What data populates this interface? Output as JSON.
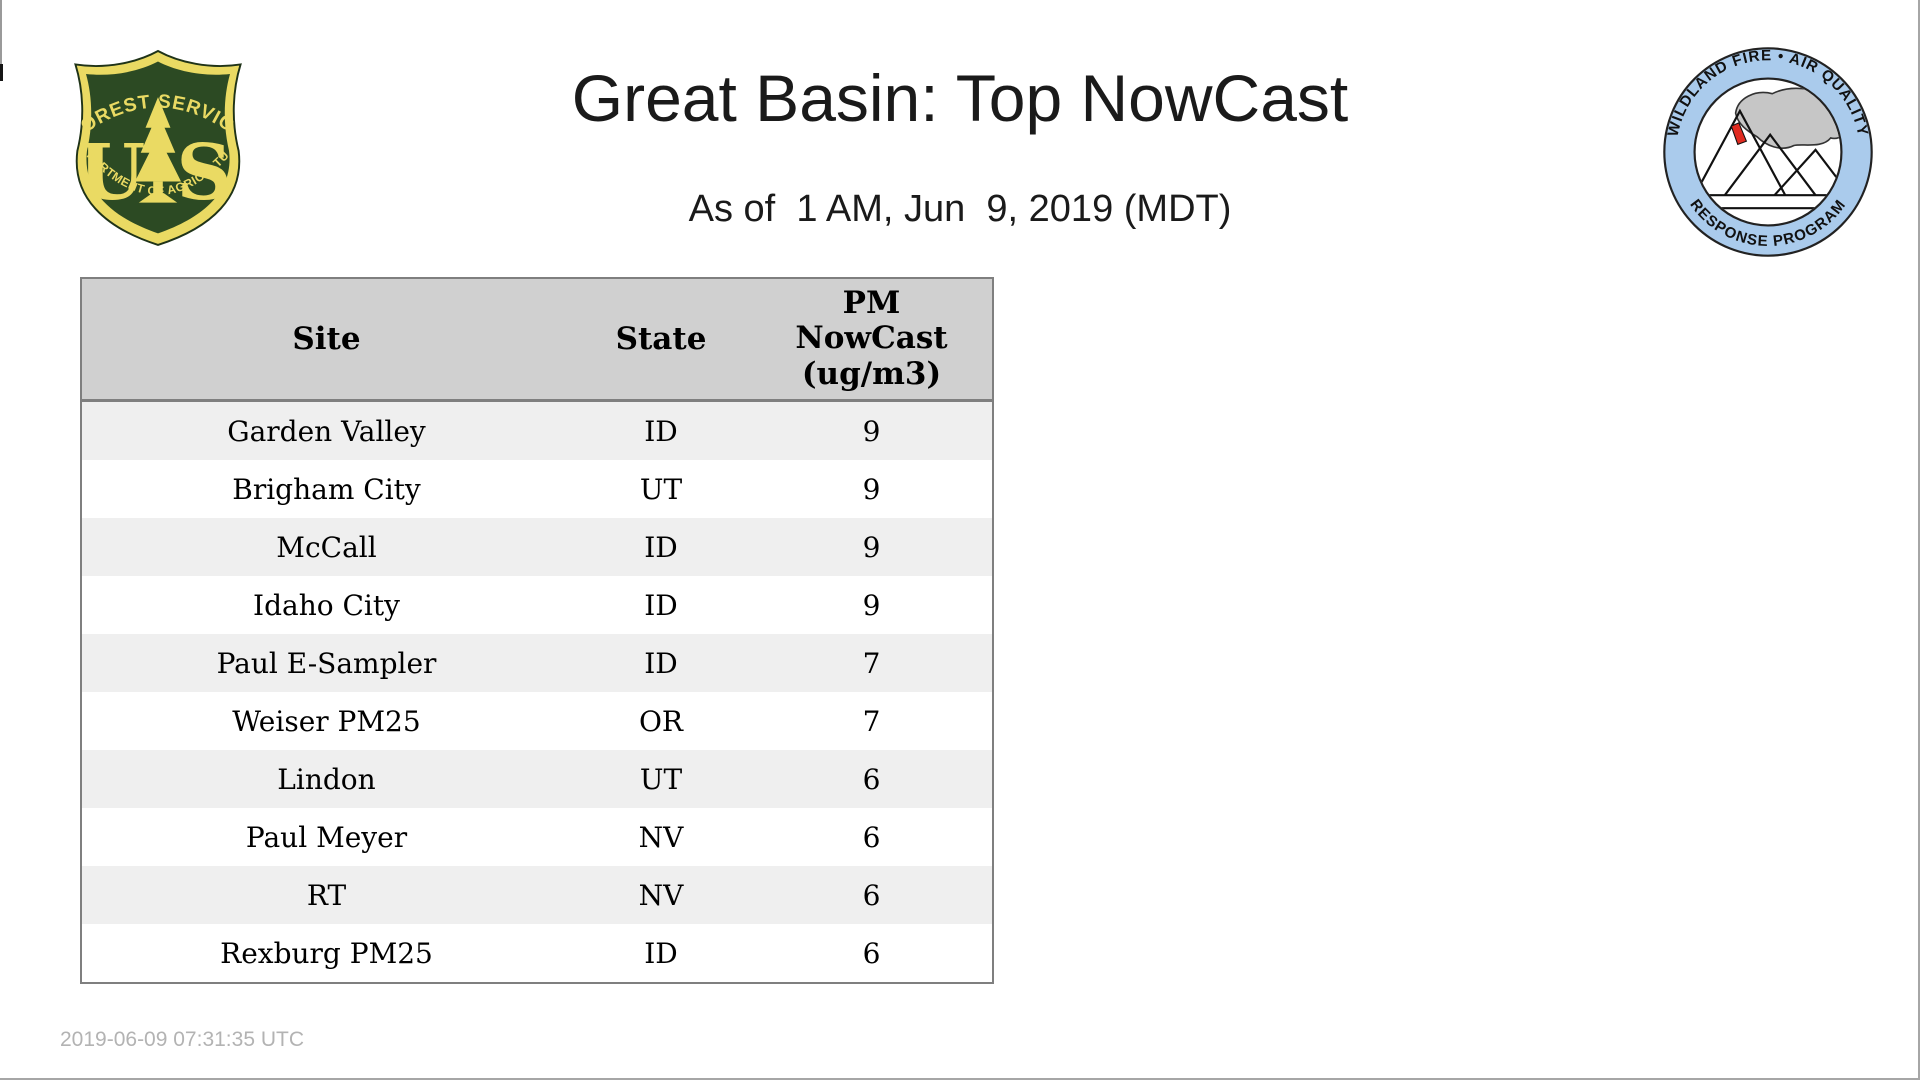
{
  "page": {
    "title": "Great Basin: Top NowCast",
    "subtitle": "As of  1 AM, Jun  9, 2019 (MDT)",
    "footer_timestamp": "2019-06-09 07:31:35 UTC"
  },
  "logos": {
    "forest_service": {
      "arc_top": "FOREST SERVICE",
      "letter_left": "U",
      "letter_right": "S",
      "arc_bottom": "DEPARTMENT OF AGRICULTURE"
    },
    "wfaqrp": {
      "arc_top": "WILDLAND FIRE • AIR QUALITY",
      "arc_bottom": "RESPONSE PROGRAM"
    }
  },
  "table": {
    "header": {
      "site": "Site",
      "state": "State",
      "pm_lines": [
        "PM",
        "NowCast",
        "(ug/m3)"
      ]
    },
    "rows": [
      {
        "site": "Garden Valley",
        "state": "ID",
        "value": "9"
      },
      {
        "site": "Brigham City",
        "state": "UT",
        "value": "9"
      },
      {
        "site": "McCall",
        "state": "ID",
        "value": "9"
      },
      {
        "site": "Idaho City",
        "state": "ID",
        "value": "9"
      },
      {
        "site": "Paul E-Sampler",
        "state": "ID",
        "value": "7"
      },
      {
        "site": "Weiser PM25",
        "state": "OR",
        "value": "7"
      },
      {
        "site": "Lindon",
        "state": "UT",
        "value": "6"
      },
      {
        "site": "Paul Meyer",
        "state": "NV",
        "value": "6"
      },
      {
        "site": "RT",
        "state": "NV",
        "value": "6"
      },
      {
        "site": "Rexburg PM25",
        "state": "ID",
        "value": "6"
      }
    ]
  },
  "colors": {
    "title-text": "#1a1a1a",
    "header-bg": "#d0d0d0",
    "row-odd-bg": "#efefef",
    "row-even-bg": "#ffffff",
    "table-border": "#7f7f7f",
    "footer-text": "#b3b3b3",
    "edge-border": "#a6a6a6",
    "fs-green": "#2c4a23",
    "fs-gold": "#eada63",
    "badge-blue": "#aacbec",
    "smoke-gray": "#c6c6c6",
    "flame-red": "#e02b20"
  }
}
